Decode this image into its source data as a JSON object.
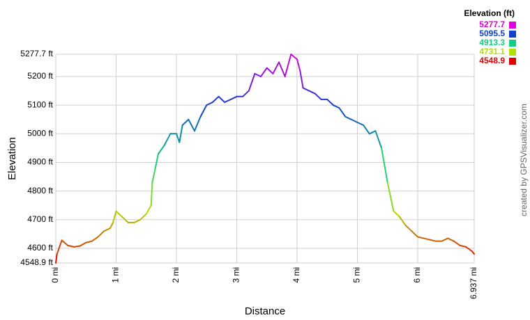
{
  "chart_data": {
    "type": "line",
    "x_label": "Distance",
    "y_label": "Elevation",
    "credit": "created by GPSVisualizer.com",
    "legend_title": "Elevation (ft)",
    "color_scale": [
      {
        "value": 5277.7,
        "color": "#e000e0"
      },
      {
        "value": 5095.5,
        "color": "#1040d0"
      },
      {
        "value": 4913.3,
        "color": "#10d080"
      },
      {
        "value": 4731.1,
        "color": "#b0e000"
      },
      {
        "value": 4548.9,
        "color": "#e00000"
      }
    ],
    "xlim": [
      0,
      6.937
    ],
    "ylim": [
      4548.9,
      5277.7
    ],
    "xticks": [
      {
        "value": 0,
        "label": "0 mi"
      },
      {
        "value": 1,
        "label": "1 mi"
      },
      {
        "value": 2,
        "label": "2 mi"
      },
      {
        "value": 3,
        "label": "3 mi"
      },
      {
        "value": 4,
        "label": "4 mi"
      },
      {
        "value": 5,
        "label": "5 mi"
      },
      {
        "value": 6,
        "label": "6 mi"
      },
      {
        "value": 6.937,
        "label": "6.937 mi"
      }
    ],
    "yticks": [
      {
        "value": 4548.9,
        "label": "4548.9 ft"
      },
      {
        "value": 4600,
        "label": "4600 ft"
      },
      {
        "value": 4700,
        "label": "4700 ft"
      },
      {
        "value": 4800,
        "label": "4800 ft"
      },
      {
        "value": 4900,
        "label": "4900 ft"
      },
      {
        "value": 5000,
        "label": "5000 ft"
      },
      {
        "value": 5100,
        "label": "5100 ft"
      },
      {
        "value": 5200,
        "label": "5200 ft"
      },
      {
        "value": 5277.7,
        "label": "5277.7 ft"
      }
    ],
    "grid": true,
    "x": [
      0,
      0.02,
      0.1,
      0.2,
      0.3,
      0.4,
      0.5,
      0.6,
      0.7,
      0.8,
      0.9,
      0.95,
      1.0,
      1.1,
      1.2,
      1.3,
      1.4,
      1.5,
      1.58,
      1.6,
      1.65,
      1.7,
      1.8,
      1.9,
      2.0,
      2.05,
      2.1,
      2.2,
      2.3,
      2.4,
      2.5,
      2.6,
      2.7,
      2.8,
      2.9,
      3.0,
      3.1,
      3.2,
      3.3,
      3.4,
      3.5,
      3.6,
      3.7,
      3.8,
      3.9,
      4.0,
      4.05,
      4.1,
      4.2,
      4.3,
      4.4,
      4.5,
      4.6,
      4.7,
      4.8,
      4.9,
      5.0,
      5.1,
      5.2,
      5.3,
      5.4,
      5.5,
      5.6,
      5.7,
      5.8,
      5.9,
      6.0,
      6.1,
      6.2,
      6.3,
      6.4,
      6.5,
      6.6,
      6.7,
      6.8,
      6.9,
      6.937
    ],
    "values": [
      4549,
      4580,
      4628,
      4610,
      4605,
      4608,
      4620,
      4625,
      4640,
      4660,
      4670,
      4690,
      4730,
      4710,
      4690,
      4690,
      4700,
      4720,
      4750,
      4830,
      4880,
      4930,
      4960,
      5000,
      5000,
      4970,
      5030,
      5050,
      5010,
      5060,
      5100,
      5110,
      5130,
      5110,
      5120,
      5130,
      5130,
      5150,
      5210,
      5200,
      5230,
      5210,
      5250,
      5200,
      5277.7,
      5260,
      5220,
      5160,
      5150,
      5140,
      5120,
      5120,
      5100,
      5090,
      5060,
      5050,
      5040,
      5030,
      5000,
      5010,
      4950,
      4830,
      4730,
      4710,
      4680,
      4660,
      4640,
      4635,
      4630,
      4625,
      4625,
      4635,
      4625,
      4610,
      4605,
      4590,
      4580
    ]
  }
}
